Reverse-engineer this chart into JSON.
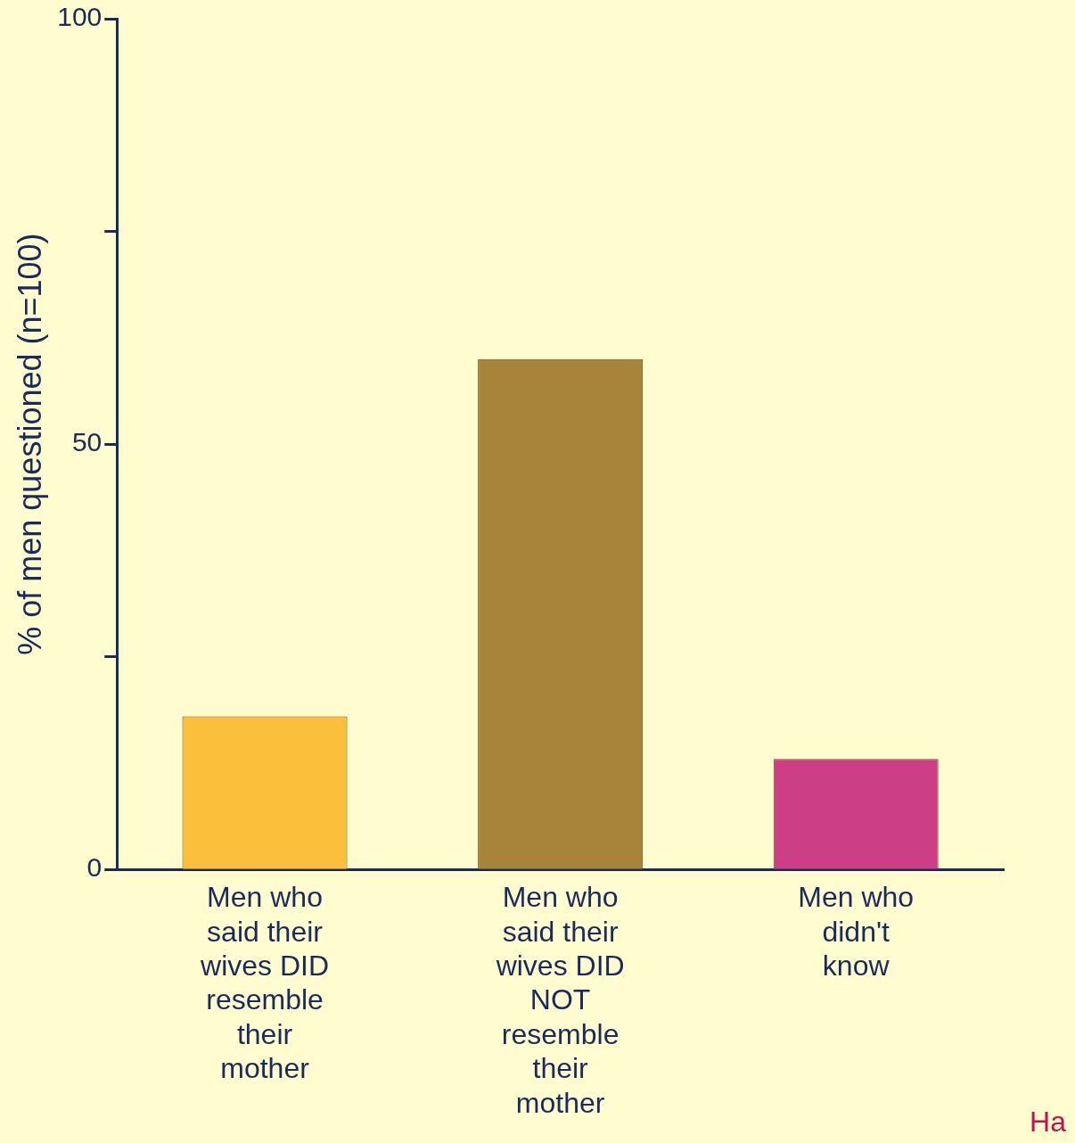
{
  "chart_data": {
    "type": "bar",
    "ylabel": "% of men questioned (n=100)",
    "categories": [
      "Men who said their wives DID resemble their mother",
      "Men who said their wives DID NOT resemble their mother",
      "Men who didn't know"
    ],
    "values": [
      18,
      60,
      13
    ],
    "colors": [
      "#fbbf3c",
      "#a8843a",
      "#cc3f86"
    ],
    "ylim": [
      0,
      100
    ],
    "yticks": [
      0,
      {
        "value": 25,
        "label": null
      },
      50,
      {
        "value": 75,
        "label": null
      },
      100
    ],
    "grid": false,
    "legend": false,
    "annotations": [
      "Ha"
    ]
  }
}
